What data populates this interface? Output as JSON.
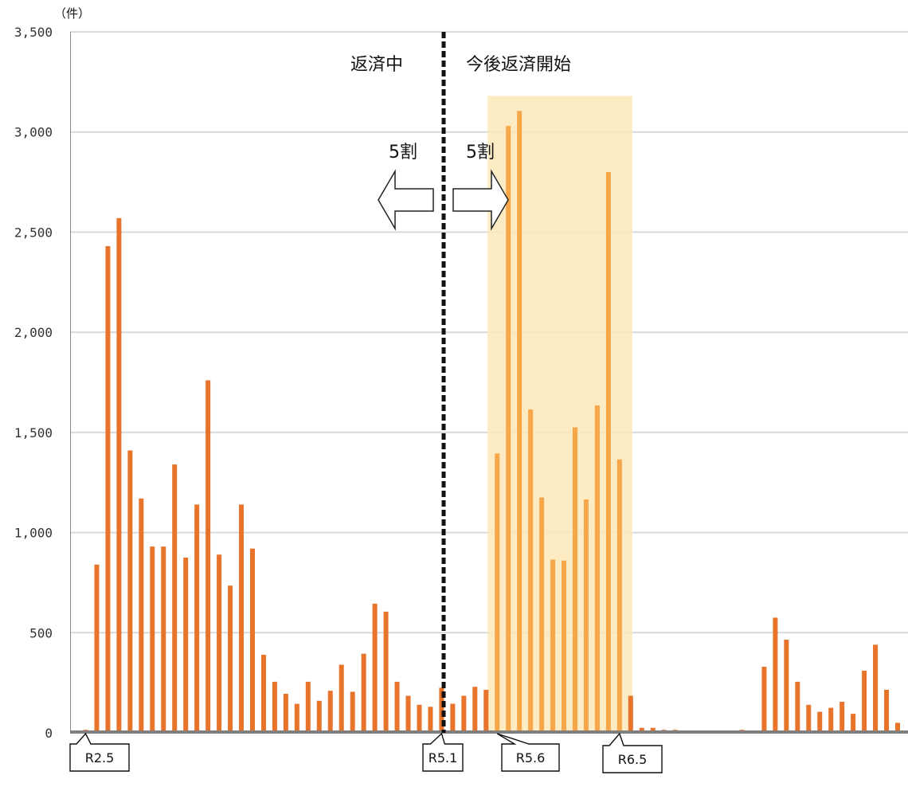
{
  "chart_data": {
    "type": "bar",
    "unit_label": "（件）",
    "ylim": [
      0,
      3500
    ],
    "yticks": [
      "0",
      "500",
      "1,000",
      "1,500",
      "2,000",
      "2,500",
      "3,000",
      "3,500"
    ],
    "grid": true,
    "bar_color": "#E8732A",
    "highlight_color": "#F7A64A",
    "values": [
      15,
      840,
      2430,
      2570,
      1410,
      1170,
      930,
      930,
      1340,
      875,
      1140,
      1760,
      890,
      735,
      1140,
      920,
      390,
      255,
      195,
      145,
      255,
      160,
      210,
      340,
      205,
      395,
      645,
      605,
      255,
      185,
      140,
      130,
      225,
      145,
      185,
      230,
      215,
      1395,
      3030,
      3105,
      1615,
      1175,
      865,
      860,
      1525,
      1165,
      1635,
      2800,
      1365,
      185,
      25,
      25,
      15,
      15,
      0,
      0,
      0,
      0,
      0,
      15,
      10,
      330,
      575,
      465,
      255,
      140,
      105,
      125,
      155,
      95,
      310,
      440,
      215,
      50
    ],
    "divider_after_index": 32,
    "highlight_range": [
      37,
      48
    ],
    "annotations": {
      "left_label": "返済中",
      "right_label": "今後返済開始",
      "left_share": "5割",
      "right_share": "5割"
    },
    "callouts": [
      {
        "label": "R2.5",
        "index": 0
      },
      {
        "label": "R5.1",
        "index": 32
      },
      {
        "label": "R5.6",
        "index": 37
      },
      {
        "label": "R6.5",
        "index": 48
      }
    ]
  },
  "colors": {
    "grid": "#d9d9d9",
    "axis": "#7f7f7f",
    "highlight_band": "#FCE7B8",
    "divider": "#111111"
  }
}
